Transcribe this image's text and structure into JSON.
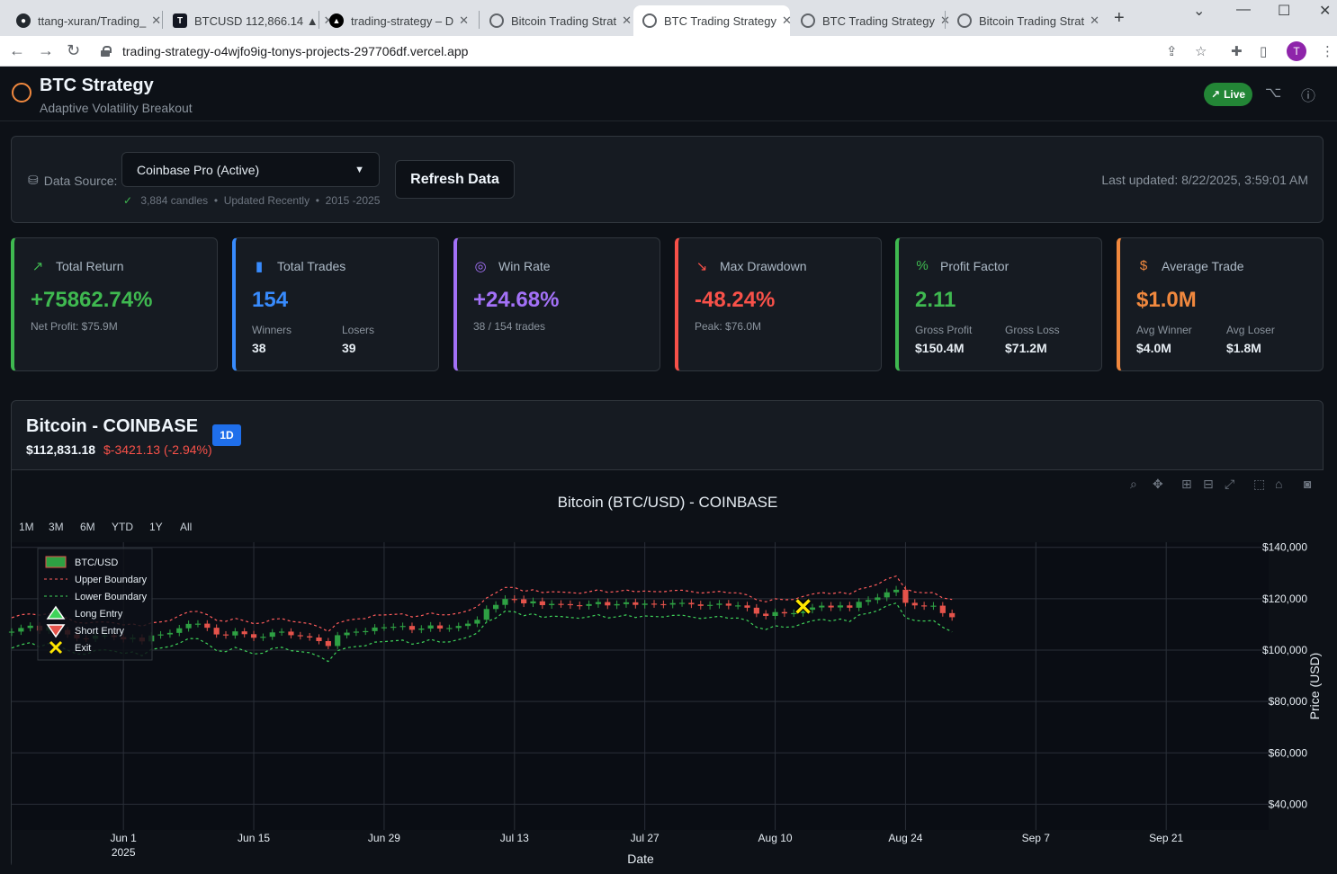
{
  "browser": {
    "tabs": [
      {
        "title": "ttang-xuran/Trading_",
        "icon": "github-icon"
      },
      {
        "title": "BTCUSD 112,866.14 ▲",
        "icon": "tradingview-icon"
      },
      {
        "title": "trading-strategy – D",
        "icon": "vercel-icon"
      },
      {
        "title": "Bitcoin Trading Strat",
        "icon": "globe-icon"
      },
      {
        "title": "BTC Trading Strategy",
        "icon": "globe-icon",
        "active": true
      },
      {
        "title": "BTC Trading Strategy",
        "icon": "globe-icon"
      },
      {
        "title": "Bitcoin Trading Strat",
        "icon": "globe-icon"
      }
    ],
    "url": "trading-strategy-o4wjfo9ig-tonys-projects-297706df.vercel.app",
    "profile_initial": "T"
  },
  "header": {
    "title": "BTC Strategy",
    "subtitle": "Adaptive Volatility Breakout",
    "live_label": "Live"
  },
  "data_source": {
    "label": "Data Source:",
    "selected": "Coinbase Pro (Active)",
    "candles": "3,884 candles",
    "status": "Updated Recently",
    "range": "2015 -2025",
    "refresh_label": "Refresh Data",
    "last_updated": "Last updated: 8/22/2025, 3:59:01 AM"
  },
  "metrics": [
    {
      "title": "Total Return",
      "icon": "trending-up-icon",
      "value": "+75862.74%",
      "sub": "Net Profit: $75.9M",
      "color": "#3fb950"
    },
    {
      "title": "Total Trades",
      "icon": "bar-chart-icon",
      "value": "154",
      "left_key": "Winners",
      "left_val": "38",
      "right_key": "Losers",
      "right_val": "39",
      "color": "#388bfd"
    },
    {
      "title": "Win Rate",
      "icon": "target-icon",
      "value": "+24.68%",
      "sub": "38 / 154 trades",
      "color": "#a371f7"
    },
    {
      "title": "Max Drawdown",
      "icon": "trending-down-icon",
      "value": "-48.24%",
      "sub": "Peak: $76.0M",
      "color": "#f85149"
    },
    {
      "title": "Profit Factor",
      "icon": "percent-icon",
      "value": "2.11",
      "left_key": "Gross Profit",
      "left_val": "$150.4M",
      "right_key": "Gross Loss",
      "right_val": "$71.2M",
      "color": "#3fb950"
    },
    {
      "title": "Average Trade",
      "icon": "dollar-icon",
      "value": "$1.0M",
      "left_key": "Avg Winner",
      "left_val": "$4.0M",
      "right_key": "Avg Loser",
      "right_val": "$1.8M",
      "color": "#f0883e"
    }
  ],
  "chart_header": {
    "instrument": "Bitcoin - COINBASE",
    "price": "$112,831.18",
    "change": "$-3421.13 (-2.94%)",
    "timeframe": "1D"
  },
  "range_buttons": [
    "1M",
    "3M",
    "6M",
    "YTD",
    "1Y",
    "All"
  ],
  "chart_data": {
    "type": "candlestick",
    "title": "Bitcoin (BTC/USD) - COINBASE",
    "xlabel": "Date",
    "ylabel": "Price (USD)",
    "x_ticks": [
      "Jun 1",
      "Jun 15",
      "Jun 29",
      "Jul 13",
      "Jul 27",
      "Aug 10",
      "Aug 24",
      "Sep 7",
      "Sep 21"
    ],
    "x_tick_year": "2025",
    "x_range": [
      "2025-05-20",
      "2025-10-02"
    ],
    "y_ticks": [
      "$40,000",
      "$60,000",
      "$80,000",
      "$100,000",
      "$120,000",
      "$140,000"
    ],
    "ylim": [
      30000,
      142000
    ],
    "legend": [
      "BTC/USD",
      "Upper Boundary",
      "Lower Boundary",
      "Long Entry",
      "Short Entry",
      "Exit"
    ],
    "start_date": "2025-05-20",
    "close": [
      107200,
      108600,
      109500,
      107600,
      108900,
      107800,
      106100,
      104600,
      104400,
      105600,
      105700,
      105100,
      104200,
      104900,
      103400,
      105700,
      106100,
      106700,
      108500,
      110200,
      110300,
      108700,
      106100,
      105700,
      107300,
      106200,
      104800,
      105200,
      106900,
      107200,
      105800,
      105400,
      104900,
      103500,
      101600,
      105800,
      106800,
      107200,
      107400,
      108800,
      108900,
      109100,
      109400,
      107900,
      108400,
      109600,
      108400,
      108600,
      109400,
      110300,
      111800,
      116000,
      117600,
      119900,
      119800,
      118200,
      119000,
      117500,
      118000,
      117900,
      117500,
      117200,
      117900,
      118700,
      117400,
      117900,
      118600,
      117600,
      118100,
      117900,
      117700,
      118300,
      118400,
      117800,
      117200,
      117600,
      118100,
      117300,
      117400,
      116500,
      114200,
      113300,
      114800,
      114300,
      114400,
      115700,
      116600,
      117300,
      116600,
      117400,
      116500,
      118800,
      119500,
      120500,
      122500,
      123500,
      118400,
      117400,
      117100,
      117300,
      114400,
      112800
    ],
    "upper_boundary": [
      112600,
      113800,
      114100,
      113600,
      114200,
      113700,
      112400,
      110700,
      110500,
      110900,
      111000,
      110600,
      109800,
      110200,
      109300,
      110600,
      111000,
      111500,
      113400,
      114900,
      115100,
      113800,
      111600,
      111200,
      112400,
      111400,
      110300,
      110600,
      112000,
      112300,
      111200,
      110800,
      110300,
      109100,
      107200,
      110500,
      111600,
      112100,
      112300,
      113600,
      113700,
      113900,
      114100,
      112900,
      113400,
      114500,
      113700,
      113800,
      114400,
      115300,
      116900,
      120300,
      122300,
      124400,
      124400,
      122900,
      123500,
      122400,
      122700,
      122600,
      122400,
      122100,
      122700,
      123500,
      122500,
      122800,
      123400,
      122700,
      123000,
      122800,
      122700,
      123200,
      123300,
      122800,
      122200,
      122500,
      122900,
      122300,
      122300,
      121500,
      119600,
      118800,
      120000,
      119600,
      119700,
      120900,
      121800,
      122400,
      121900,
      122500,
      121800,
      123700,
      124500,
      125600,
      127700,
      128800,
      123800,
      122600,
      122300,
      122400,
      120300,
      119700
    ],
    "lower_boundary": [
      100800,
      102100,
      102900,
      101300,
      102600,
      101600,
      100000,
      98500,
      98400,
      99900,
      100100,
      99600,
      98700,
      99300,
      97800,
      100300,
      100800,
      101400,
      102700,
      104500,
      104400,
      102500,
      99800,
      99400,
      101100,
      99800,
      98500,
      98800,
      100700,
      101100,
      99800,
      99400,
      99000,
      97600,
      95600,
      99800,
      100900,
      101400,
      101700,
      103100,
      103300,
      103600,
      103900,
      102300,
      102900,
      104200,
      103100,
      103200,
      104100,
      105000,
      106600,
      111000,
      112500,
      115200,
      114900,
      113400,
      114200,
      112700,
      113200,
      113100,
      112700,
      112400,
      113000,
      113800,
      112500,
      113000,
      113700,
      112700,
      113300,
      113100,
      112900,
      113500,
      113600,
      112900,
      112300,
      112700,
      113200,
      112400,
      112500,
      111600,
      108900,
      108000,
      109500,
      108900,
      109100,
      110400,
      111400,
      112000,
      111300,
      112100,
      111100,
      113700,
      114300,
      115300,
      117300,
      118300,
      112600,
      111500,
      111300,
      111500,
      108900,
      107100
    ],
    "exit_markers": [
      {
        "date": "2025-08-13",
        "price": 117000
      }
    ]
  }
}
